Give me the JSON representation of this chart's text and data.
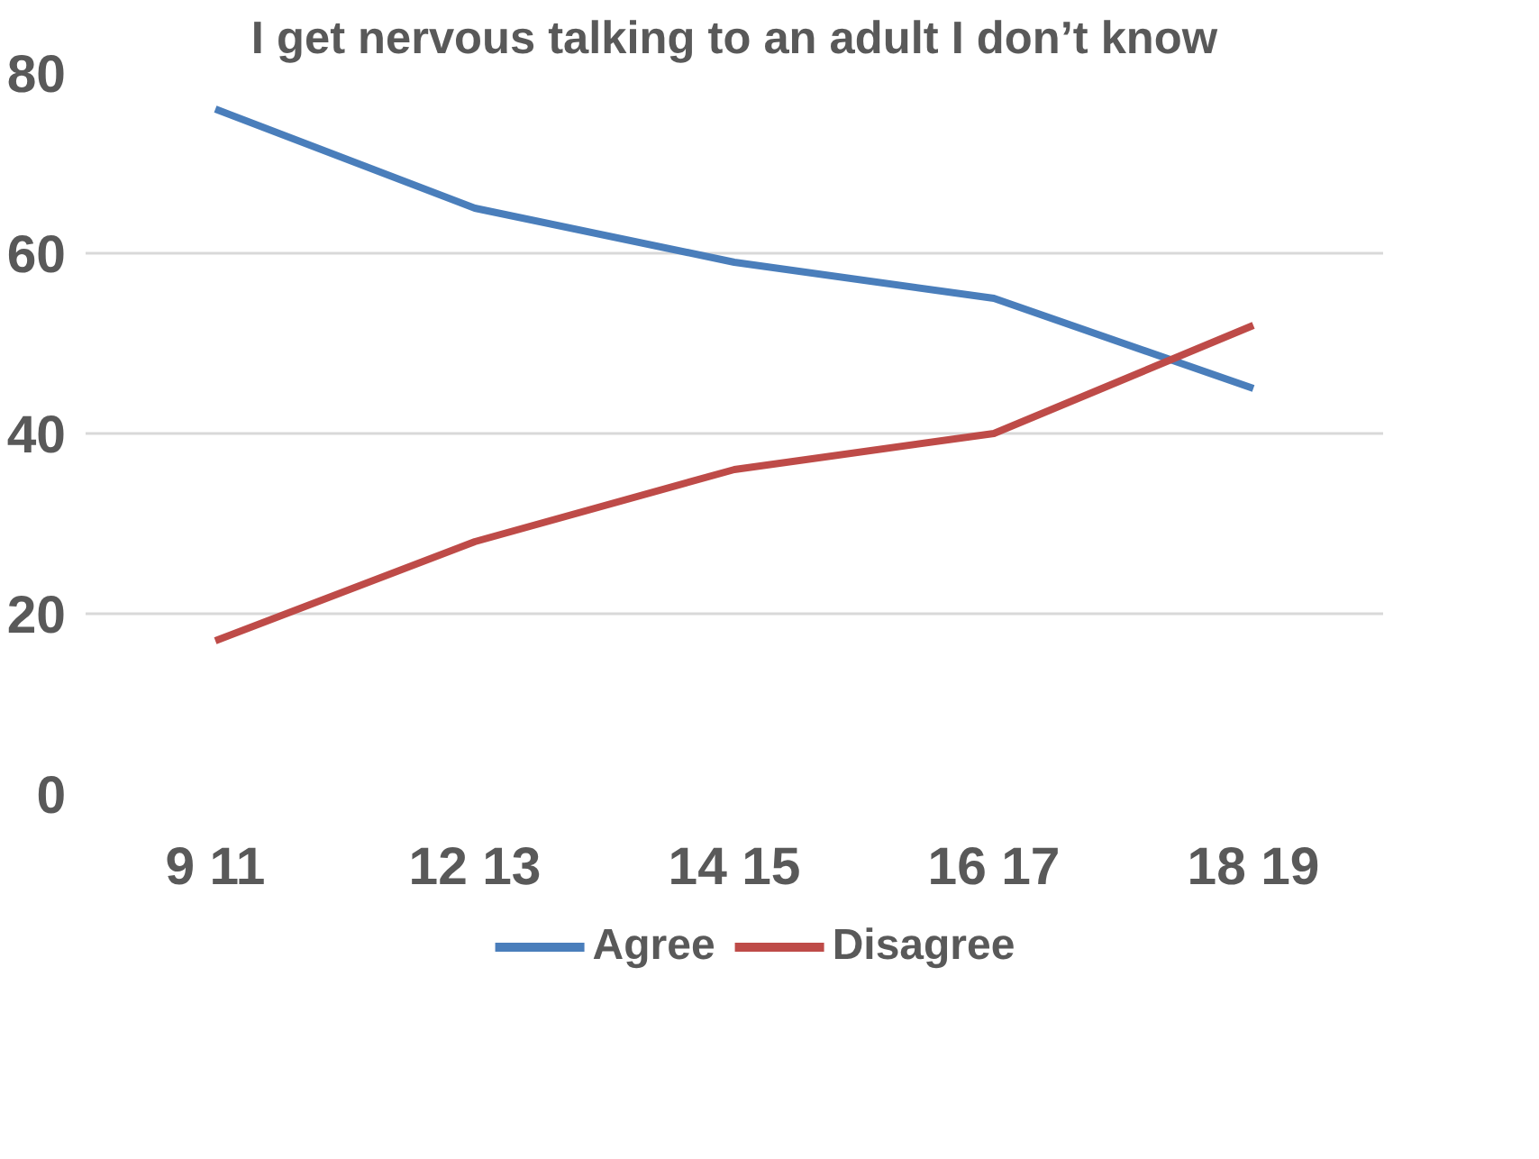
{
  "chart_data": {
    "type": "line",
    "title": "I get nervous talking to an adult I don’t know",
    "categories": [
      "9 11",
      "12 13",
      "14 15",
      "16 17",
      "18 19"
    ],
    "series": [
      {
        "name": "Agree",
        "color": "#4a7ebb",
        "values": [
          76,
          65,
          59,
          55,
          45
        ]
      },
      {
        "name": "Disagree",
        "color": "#be4b48",
        "values": [
          17,
          28,
          36,
          40,
          52
        ]
      }
    ],
    "ylim": [
      0,
      80
    ],
    "yticks": [
      0,
      20,
      40,
      60,
      80
    ],
    "grid": "y",
    "legend": "bottom",
    "marker": "none"
  }
}
